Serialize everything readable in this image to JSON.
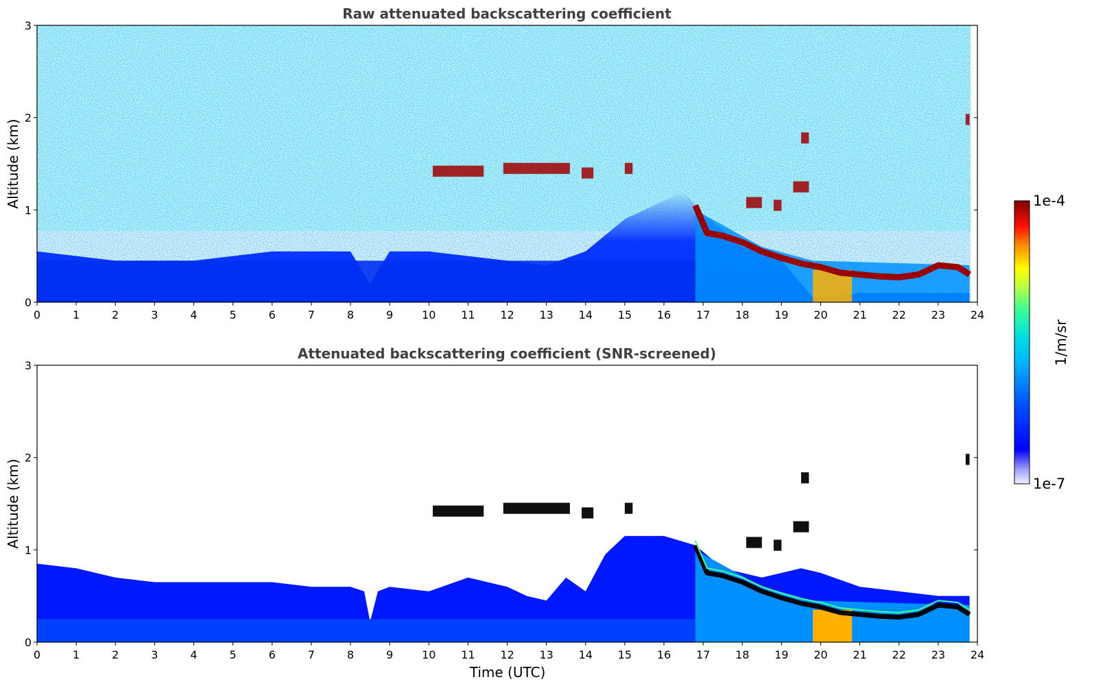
{
  "chart_data": [
    {
      "type": "heatmap",
      "title": "Raw attenuated backscattering coefficient",
      "xlabel": "",
      "ylabel": "Altitude (km)",
      "xlim": [
        0,
        24
      ],
      "ylim": [
        0,
        3
      ],
      "xticks": [
        "0",
        "1",
        "2",
        "3",
        "4",
        "5",
        "6",
        "7",
        "8",
        "9",
        "10",
        "11",
        "12",
        "13",
        "14",
        "15",
        "16",
        "17",
        "18",
        "19",
        "20",
        "21",
        "22",
        "23",
        "24"
      ],
      "yticks": [
        "0",
        "1",
        "2",
        "3"
      ],
      "background_blue_top_km": [
        [
          0,
          0.55
        ],
        [
          2,
          0.45
        ],
        [
          4,
          0.45
        ],
        [
          6,
          0.55
        ],
        [
          8,
          0.55
        ],
        [
          8.5,
          0.2
        ],
        [
          9,
          0.55
        ],
        [
          10,
          0.55
        ],
        [
          12,
          0.45
        ],
        [
          13,
          0.4
        ],
        [
          14,
          0.55
        ],
        [
          15,
          0.9
        ],
        [
          16.5,
          1.2
        ],
        [
          17,
          0.95
        ],
        [
          18,
          0.6
        ],
        [
          19,
          0.45
        ],
        [
          19.8,
          0.05
        ],
        [
          21,
          0.1
        ],
        [
          22,
          0.1
        ],
        [
          23,
          0.1
        ],
        [
          23.8,
          0.1
        ]
      ],
      "aerosol_layer_top_km": [
        [
          16.8,
          1.05
        ],
        [
          17.1,
          0.75
        ],
        [
          17.5,
          0.72
        ],
        [
          18,
          0.65
        ],
        [
          18.5,
          0.55
        ],
        [
          19,
          0.48
        ],
        [
          19.5,
          0.42
        ],
        [
          20,
          0.38
        ],
        [
          20.5,
          0.32
        ],
        [
          21,
          0.3
        ],
        [
          21.5,
          0.28
        ],
        [
          22,
          0.27
        ],
        [
          22.5,
          0.3
        ],
        [
          23,
          0.4
        ],
        [
          23.5,
          0.38
        ],
        [
          23.8,
          0.3
        ]
      ],
      "cloud_patches": [
        {
          "t": [
            10.1,
            11.4
          ],
          "z": 1.42
        },
        {
          "t": [
            11.9,
            13.6
          ],
          "z": 1.45
        },
        {
          "t": [
            13.9,
            14.2
          ],
          "z": 1.4
        },
        {
          "t": [
            15.0,
            15.2
          ],
          "z": 1.45
        },
        {
          "t": [
            18.1,
            18.5
          ],
          "z": 1.08
        },
        {
          "t": [
            18.8,
            19.0
          ],
          "z": 1.05
        },
        {
          "t": [
            19.3,
            19.7
          ],
          "z": 1.25
        },
        {
          "t": [
            19.5,
            19.7
          ],
          "z": 1.78
        },
        {
          "t": [
            23.7,
            23.8
          ],
          "z": 1.98
        }
      ]
    },
    {
      "type": "heatmap",
      "title": "Attenuated backscattering coefficient (SNR-screened)",
      "xlabel": "Time (UTC)",
      "ylabel": "Altitude (km)",
      "xlim": [
        0,
        24
      ],
      "ylim": [
        0,
        3
      ],
      "xticks": [
        "0",
        "1",
        "2",
        "3",
        "4",
        "5",
        "6",
        "7",
        "8",
        "9",
        "10",
        "11",
        "12",
        "13",
        "14",
        "15",
        "16",
        "17",
        "18",
        "19",
        "20",
        "21",
        "22",
        "23",
        "24"
      ],
      "yticks": [
        "0",
        "1",
        "2",
        "3"
      ],
      "signal_top_km": [
        [
          0,
          0.85
        ],
        [
          1,
          0.8
        ],
        [
          2,
          0.7
        ],
        [
          3,
          0.65
        ],
        [
          4,
          0.65
        ],
        [
          5,
          0.65
        ],
        [
          6,
          0.65
        ],
        [
          7,
          0.6
        ],
        [
          8,
          0.6
        ],
        [
          8.35,
          0.55
        ],
        [
          8.5,
          0.22
        ],
        [
          8.7,
          0.55
        ],
        [
          9,
          0.6
        ],
        [
          10,
          0.55
        ],
        [
          11,
          0.7
        ],
        [
          12,
          0.6
        ],
        [
          12.5,
          0.5
        ],
        [
          13,
          0.45
        ],
        [
          13.5,
          0.7
        ],
        [
          14,
          0.55
        ],
        [
          14.5,
          0.95
        ],
        [
          15,
          1.15
        ],
        [
          16,
          1.15
        ],
        [
          16.8,
          1.05
        ],
        [
          17.5,
          0.8
        ],
        [
          18.5,
          0.7
        ],
        [
          19.5,
          0.8
        ],
        [
          20,
          0.75
        ],
        [
          21,
          0.6
        ],
        [
          22,
          0.55
        ],
        [
          23,
          0.5
        ],
        [
          23.8,
          0.5
        ]
      ]
    }
  ],
  "colorbar": {
    "label": "1/m/sr",
    "max_label": "1e-4",
    "min_label": "1e-7",
    "colormap": [
      "#ffffff",
      "#e8e8ff",
      "#9090ff",
      "#0000ff",
      "#0060ff",
      "#00c0ff",
      "#00e8d0",
      "#40ff90",
      "#c0ff40",
      "#ffff00",
      "#ffc000",
      "#ff6000",
      "#ff0000",
      "#b00000",
      "#800000"
    ]
  }
}
